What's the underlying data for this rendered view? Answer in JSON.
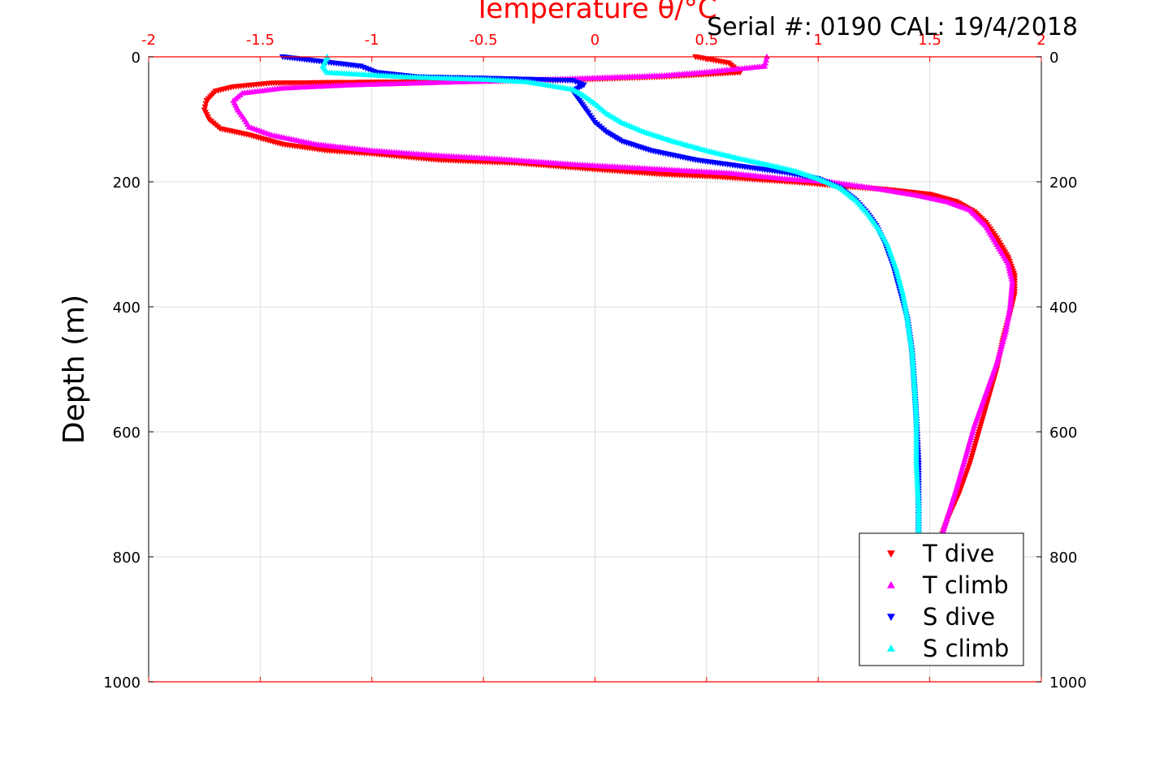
{
  "header_text": "Serial #: 0190  CAL: 19/4/2018",
  "chart_data": {
    "type": "scatter",
    "title": "",
    "xlabel": "Temperature θ/°C",
    "ylabel": "Depth (m)",
    "xlim": [
      -2,
      2
    ],
    "ylim": [
      1000,
      0
    ],
    "x_ticks": [
      "-2",
      "-1.5",
      "-1",
      "-0.5",
      "0",
      "0.5",
      "1",
      "1.5",
      "2"
    ],
    "y_ticks": [
      "0",
      "200",
      "400",
      "600",
      "800",
      "1000"
    ],
    "y_ticks_right": [
      "0",
      "200",
      "400",
      "600",
      "800",
      "1000"
    ],
    "grid": true,
    "legend_position": "bottom-right",
    "colors": {
      "axis_top": "#ff0000",
      "frame": "#000000",
      "grid": "#dddddd"
    },
    "series": [
      {
        "name": "T dive",
        "color": "#ff0000",
        "marker": "triangle-down",
        "points": [
          [
            0.45,
            0
          ],
          [
            0.6,
            10
          ],
          [
            0.65,
            25
          ],
          [
            0.3,
            32
          ],
          [
            -0.2,
            38
          ],
          [
            -0.8,
            40
          ],
          [
            -1.45,
            42
          ],
          [
            -1.62,
            48
          ],
          [
            -1.7,
            55
          ],
          [
            -1.74,
            70
          ],
          [
            -1.75,
            85
          ],
          [
            -1.73,
            100
          ],
          [
            -1.68,
            115
          ],
          [
            -1.55,
            125
          ],
          [
            -1.4,
            140
          ],
          [
            -1.2,
            150
          ],
          [
            -1.0,
            155
          ],
          [
            -0.7,
            165
          ],
          [
            -0.35,
            170
          ],
          [
            0.0,
            180
          ],
          [
            0.3,
            188
          ],
          [
            0.55,
            192
          ],
          [
            0.75,
            197
          ],
          [
            0.95,
            202
          ],
          [
            1.1,
            207
          ],
          [
            1.3,
            212
          ],
          [
            1.5,
            220
          ],
          [
            1.62,
            232
          ],
          [
            1.7,
            248
          ],
          [
            1.75,
            265
          ],
          [
            1.8,
            290
          ],
          [
            1.85,
            320
          ],
          [
            1.88,
            350
          ],
          [
            1.88,
            380
          ],
          [
            1.86,
            410
          ],
          [
            1.83,
            450
          ],
          [
            1.8,
            500
          ],
          [
            1.76,
            550
          ],
          [
            1.72,
            600
          ],
          [
            1.68,
            650
          ],
          [
            1.63,
            700
          ],
          [
            1.58,
            740
          ],
          [
            1.55,
            770
          ]
        ]
      },
      {
        "name": "T climb",
        "color": "#ff00ff",
        "marker": "triangle-up",
        "points": [
          [
            0.77,
            0
          ],
          [
            0.76,
            15
          ],
          [
            0.48,
            25
          ],
          [
            0.3,
            30
          ],
          [
            -0.1,
            35
          ],
          [
            -0.6,
            40
          ],
          [
            -1.1,
            45
          ],
          [
            -1.4,
            50
          ],
          [
            -1.58,
            58
          ],
          [
            -1.62,
            70
          ],
          [
            -1.6,
            85
          ],
          [
            -1.57,
            100
          ],
          [
            -1.55,
            112
          ],
          [
            -1.45,
            125
          ],
          [
            -1.25,
            140
          ],
          [
            -1.0,
            150
          ],
          [
            -0.7,
            158
          ],
          [
            -0.45,
            163
          ],
          [
            -0.1,
            172
          ],
          [
            0.3,
            180
          ],
          [
            0.6,
            186
          ],
          [
            0.85,
            195
          ],
          [
            1.05,
            200
          ],
          [
            1.25,
            210
          ],
          [
            1.45,
            222
          ],
          [
            1.58,
            232
          ],
          [
            1.68,
            245
          ],
          [
            1.75,
            270
          ],
          [
            1.8,
            300
          ],
          [
            1.85,
            330
          ],
          [
            1.87,
            360
          ],
          [
            1.86,
            400
          ],
          [
            1.84,
            440
          ],
          [
            1.8,
            490
          ],
          [
            1.75,
            540
          ],
          [
            1.7,
            590
          ],
          [
            1.66,
            640
          ],
          [
            1.62,
            690
          ],
          [
            1.58,
            735
          ],
          [
            1.55,
            770
          ]
        ]
      },
      {
        "name": "S dive",
        "color": "#0000ff",
        "marker": "triangle-down",
        "points": [
          [
            -1.4,
            0
          ],
          [
            -1.05,
            15
          ],
          [
            -0.98,
            25
          ],
          [
            -0.8,
            32
          ],
          [
            -0.4,
            35
          ],
          [
            -0.1,
            38
          ],
          [
            -0.05,
            45
          ],
          [
            -0.1,
            55
          ],
          [
            -0.07,
            70
          ],
          [
            -0.03,
            90
          ],
          [
            0.0,
            105
          ],
          [
            0.05,
            120
          ],
          [
            0.12,
            135
          ],
          [
            0.25,
            150
          ],
          [
            0.45,
            165
          ],
          [
            0.65,
            175
          ],
          [
            0.85,
            185
          ],
          [
            1.0,
            195
          ],
          [
            1.1,
            210
          ],
          [
            1.17,
            230
          ],
          [
            1.22,
            250
          ],
          [
            1.26,
            270
          ],
          [
            1.3,
            300
          ],
          [
            1.34,
            340
          ],
          [
            1.37,
            380
          ],
          [
            1.4,
            420
          ],
          [
            1.42,
            470
          ],
          [
            1.43,
            520
          ],
          [
            1.44,
            580
          ],
          [
            1.45,
            650
          ],
          [
            1.45,
            720
          ],
          [
            1.45,
            770
          ]
        ]
      },
      {
        "name": "S climb",
        "color": "#00ffff",
        "marker": "triangle-up",
        "points": [
          [
            -1.2,
            0
          ],
          [
            -1.22,
            15
          ],
          [
            -1.2,
            25
          ],
          [
            -0.85,
            32
          ],
          [
            -0.5,
            36
          ],
          [
            -0.3,
            40
          ],
          [
            -0.2,
            46
          ],
          [
            -0.1,
            52
          ],
          [
            -0.05,
            62
          ],
          [
            0.0,
            75
          ],
          [
            0.05,
            90
          ],
          [
            0.12,
            105
          ],
          [
            0.22,
            120
          ],
          [
            0.35,
            135
          ],
          [
            0.5,
            150
          ],
          [
            0.65,
            163
          ],
          [
            0.78,
            173
          ],
          [
            0.9,
            183
          ],
          [
            1.0,
            195
          ],
          [
            1.1,
            210
          ],
          [
            1.17,
            230
          ],
          [
            1.22,
            250
          ],
          [
            1.27,
            275
          ],
          [
            1.31,
            300
          ],
          [
            1.35,
            340
          ],
          [
            1.38,
            380
          ],
          [
            1.4,
            420
          ],
          [
            1.42,
            470
          ],
          [
            1.43,
            520
          ],
          [
            1.44,
            580
          ],
          [
            1.44,
            650
          ],
          [
            1.45,
            720
          ],
          [
            1.45,
            770
          ]
        ]
      }
    ]
  }
}
